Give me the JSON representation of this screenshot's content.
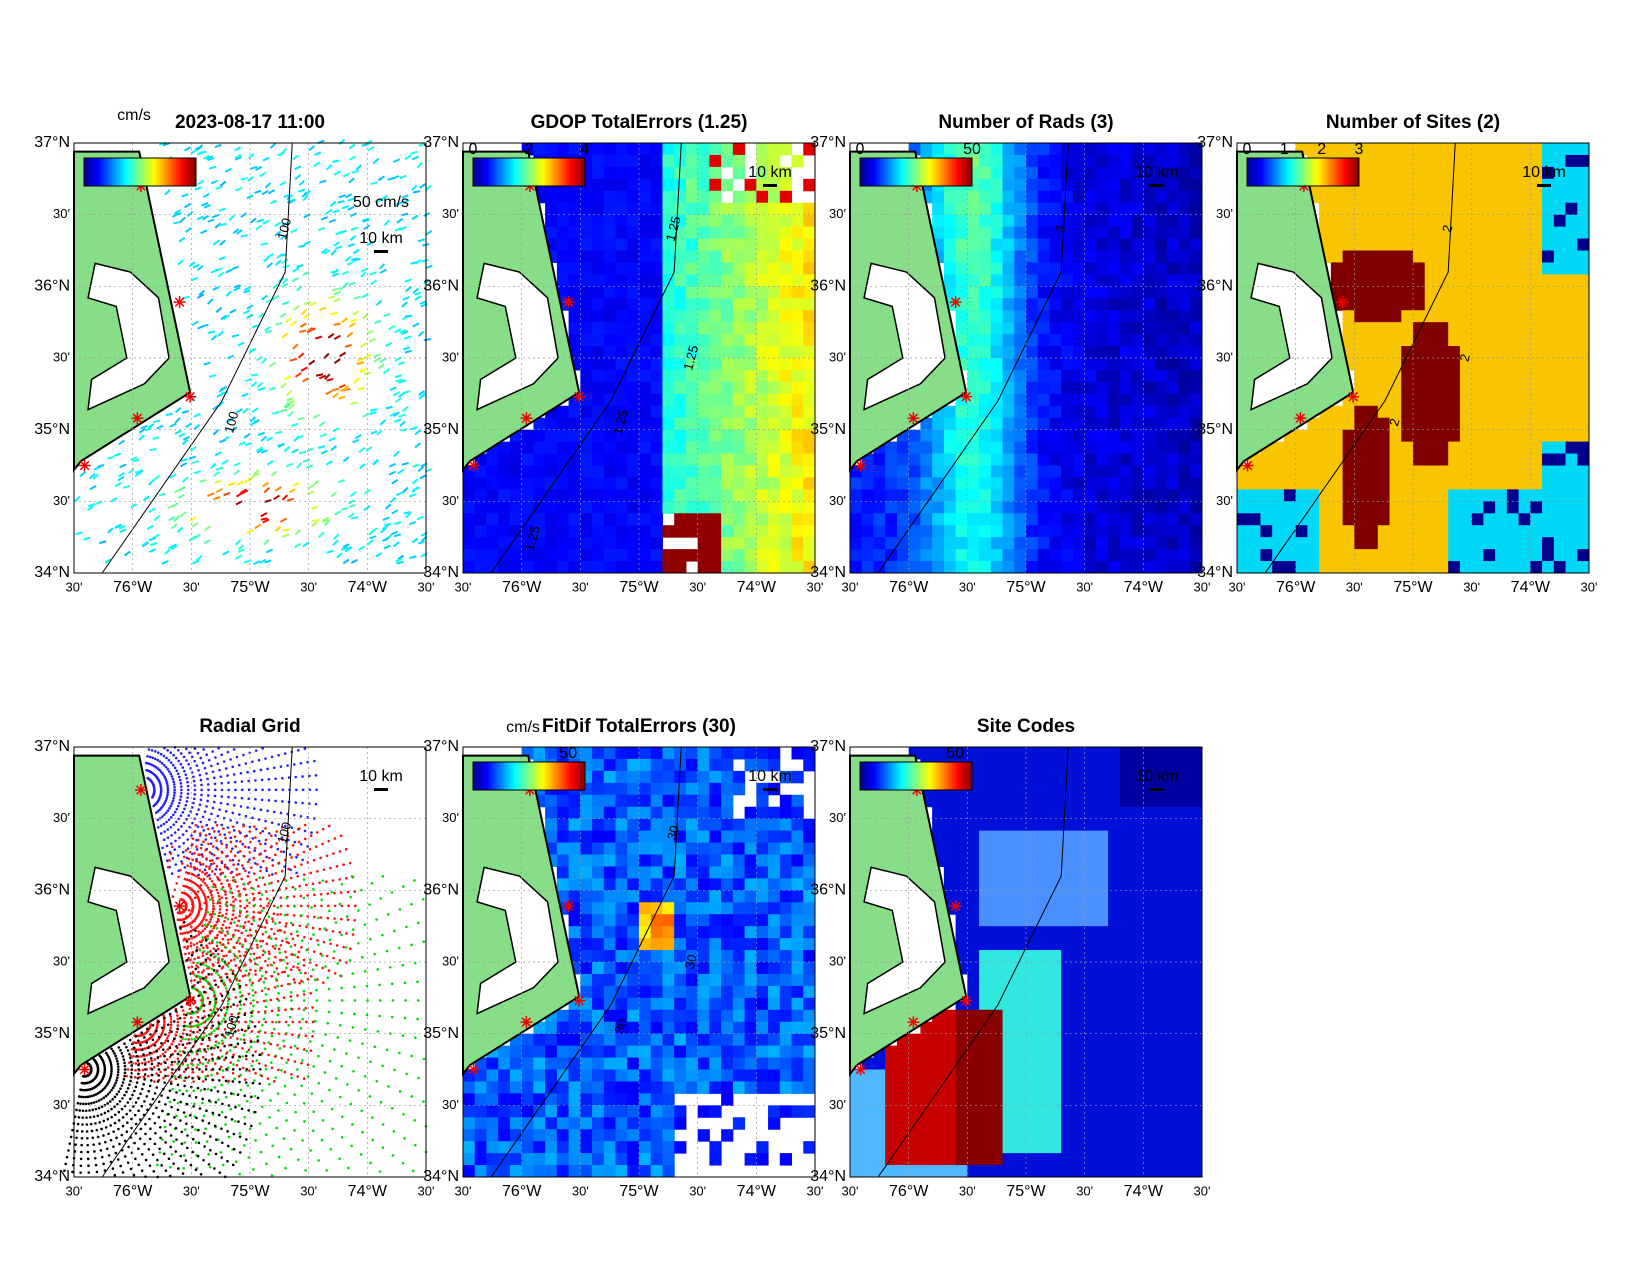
{
  "lat_labels": [
    "37°N",
    "30'",
    "36°N",
    "30'",
    "35°N",
    "30'",
    "34°N"
  ],
  "lon_labels": [
    "30'",
    "76°W",
    "30'",
    "75°W",
    "30'",
    "74°W",
    "30'"
  ],
  "panels": [
    {
      "title": "2023-08-17 11:00",
      "colorbar_unit": "cm/s",
      "speed_label": "50 cm/s",
      "scale_label": "10 km",
      "contour_labels": [
        "100",
        "100"
      ]
    },
    {
      "title": "GDOP TotalErrors (1.25)",
      "colorbar_ticks": [
        "0",
        "2",
        "4"
      ],
      "scale_label": "10 km",
      "contour_labels": [
        "1.25",
        "1.25",
        "1.25",
        "1.25"
      ]
    },
    {
      "title": "Number of Rads (3)",
      "colorbar_ticks": [
        "0",
        "50"
      ],
      "scale_label": "10 km",
      "contour_labels": [
        "3"
      ]
    },
    {
      "title": "Number of Sites (2)",
      "colorbar_ticks": [
        "0",
        "1",
        "2",
        "3"
      ],
      "scale_label": "10 km",
      "contour_labels": [
        "2",
        "2",
        "2"
      ]
    },
    {
      "title": "Radial Grid",
      "scale_label": "10 km",
      "contour_labels": [
        "100",
        "100"
      ]
    },
    {
      "title": "FitDif TotalErrors (30)",
      "colorbar_unit": "cm/s",
      "colorbar_ticks": [
        "50"
      ],
      "scale_label": "10 km",
      "contour_labels": [
        "30",
        "30",
        "30"
      ]
    },
    {
      "title": "Site Codes",
      "colorbar_ticks": [
        "50"
      ],
      "scale_label": "10 km"
    }
  ]
}
